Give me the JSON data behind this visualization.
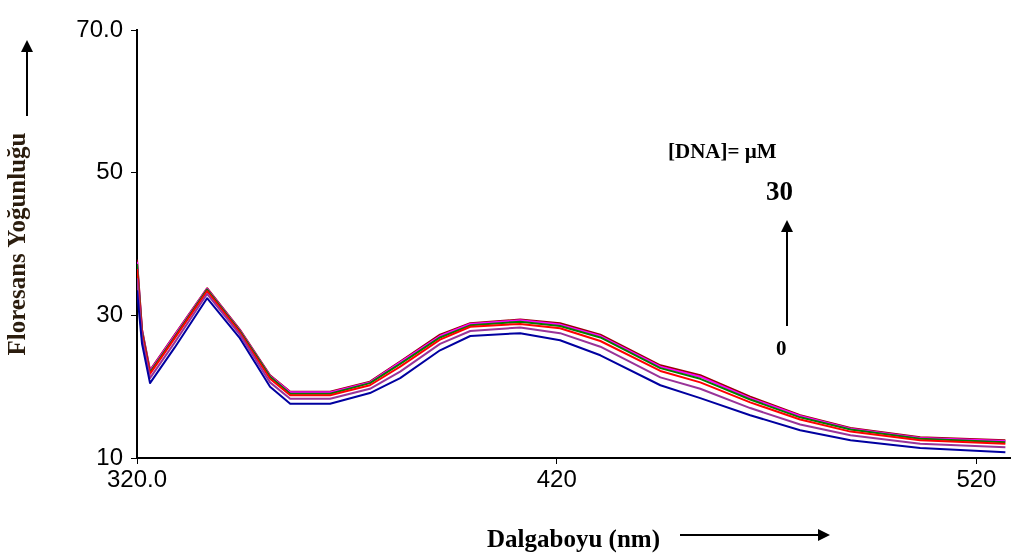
{
  "chart_data": {
    "type": "line",
    "xlabel": "Dalgaboyu (nm)",
    "ylabel": "Floresans Yoğunluğu",
    "x": [
      320,
      321.2,
      323.1,
      329,
      336.7,
      344.5,
      351.7,
      356.5,
      366,
      375.5,
      382.7,
      392.2,
      399.4,
      411.3,
      420.8,
      430.4,
      444.7,
      454.2,
      466.1,
      478,
      490,
      506.6,
      526.9
    ],
    "series": [
      {
        "color": "#0000a0",
        "values": [
          33.5,
          26,
          20.5,
          25.5,
          32.4,
          26.8,
          20.0,
          17.6,
          17.6,
          19.1,
          21.2,
          25.1,
          27.1,
          27.5,
          26.5,
          24.4,
          20.2,
          18.4,
          16,
          13.9,
          12.5,
          11.4,
          10.8
        ]
      },
      {
        "color": "#993399",
        "values": [
          35.2,
          26.8,
          21.2,
          26.2,
          33.0,
          27.3,
          20.6,
          18.3,
          18.3,
          19.7,
          22.1,
          26.0,
          27.8,
          28.3,
          27.5,
          25.6,
          21.3,
          19.7,
          17.0,
          14.7,
          13.2,
          12.0,
          11.5
        ]
      },
      {
        "color": "#ff0000",
        "values": [
          36.5,
          27.4,
          21.8,
          26.8,
          33.4,
          27.6,
          21.1,
          18.8,
          18.8,
          20.2,
          22.8,
          26.6,
          28.4,
          28.8,
          28.2,
          26.4,
          22.2,
          20.6,
          17.8,
          15.4,
          13.7,
          12.5,
          12.0
        ]
      },
      {
        "color": "#008000",
        "values": [
          37.2,
          27.7,
          22.0,
          27.0,
          33.6,
          27.8,
          21.4,
          19.0,
          19.0,
          20.5,
          23.2,
          26.9,
          28.6,
          29.1,
          28.5,
          26.9,
          22.6,
          21.1,
          18.2,
          15.7,
          14.0,
          12.7,
          12.2
        ]
      },
      {
        "color": "#ff00ff",
        "values": [
          37.5,
          27.9,
          22.2,
          27.2,
          33.7,
          27.9,
          21.5,
          19.2,
          19.2,
          20.6,
          23.4,
          27.1,
          28.8,
          29.3,
          28.7,
          27.1,
          22.8,
          21.4,
          18.4,
          15.9,
          14.1,
          12.8,
          12.4
        ]
      },
      {
        "color": "#990000",
        "values": [
          37.8,
          28,
          22.3,
          27.3,
          33.8,
          28,
          21.6,
          19.3,
          19.3,
          20.7,
          23.5,
          27.3,
          28.9,
          29.4,
          28.9,
          27.3,
          23,
          21.6,
          18.6,
          16,
          14.2,
          12.9,
          12.5
        ]
      }
    ],
    "xlim": [
      320,
      528
    ],
    "xticks": [
      {
        "value": 320,
        "label": "320.0"
      },
      420,
      520
    ],
    "ylim": [
      10,
      70
    ],
    "yticks": [
      10,
      30,
      50,
      {
        "value": 70,
        "label": "70.0"
      }
    ],
    "grid": false,
    "legend": false,
    "marker": "none",
    "line_style": "solid",
    "annotations": [
      "[DNA]= µM",
      "30",
      "0"
    ]
  }
}
